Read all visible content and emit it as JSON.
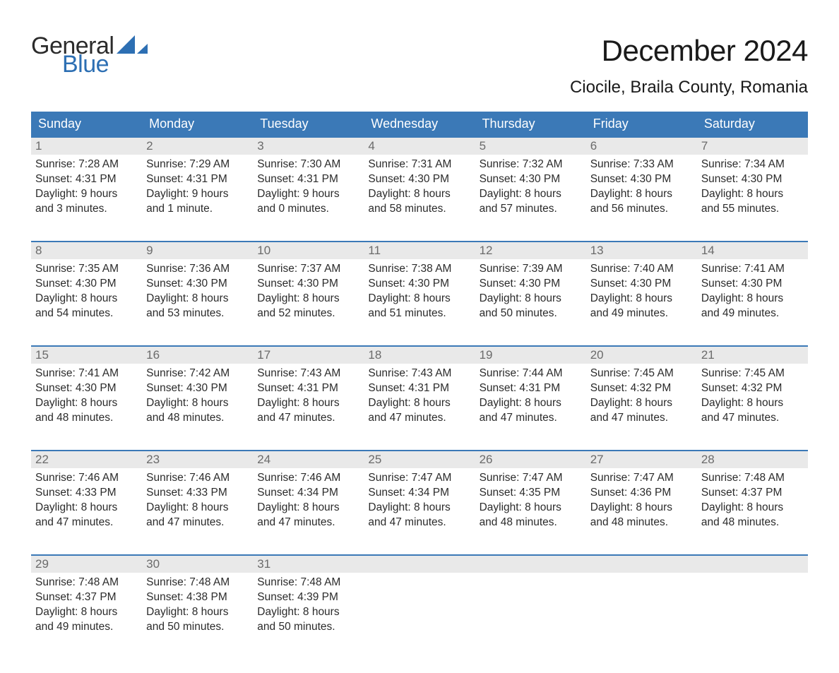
{
  "brand": {
    "general": "General",
    "blue": "Blue",
    "sail_color": "#2d6fb3"
  },
  "title": "December 2024",
  "location": "Ciocile, Braila County, Romania",
  "colors": {
    "header_bg": "#3b79b7",
    "header_text": "#ffffff",
    "daynum_bg": "#e9e9e9",
    "daynum_text": "#6b6b6b",
    "body_text": "#2b2b2b",
    "week_border": "#3b79b7",
    "page_bg": "#ffffff"
  },
  "dow": [
    "Sunday",
    "Monday",
    "Tuesday",
    "Wednesday",
    "Thursday",
    "Friday",
    "Saturday"
  ],
  "weeks": [
    [
      {
        "n": "1",
        "sr": "7:28 AM",
        "ss": "4:31 PM",
        "dl": "9 hours and 3 minutes."
      },
      {
        "n": "2",
        "sr": "7:29 AM",
        "ss": "4:31 PM",
        "dl": "9 hours and 1 minute."
      },
      {
        "n": "3",
        "sr": "7:30 AM",
        "ss": "4:31 PM",
        "dl": "9 hours and 0 minutes."
      },
      {
        "n": "4",
        "sr": "7:31 AM",
        "ss": "4:30 PM",
        "dl": "8 hours and 58 minutes."
      },
      {
        "n": "5",
        "sr": "7:32 AM",
        "ss": "4:30 PM",
        "dl": "8 hours and 57 minutes."
      },
      {
        "n": "6",
        "sr": "7:33 AM",
        "ss": "4:30 PM",
        "dl": "8 hours and 56 minutes."
      },
      {
        "n": "7",
        "sr": "7:34 AM",
        "ss": "4:30 PM",
        "dl": "8 hours and 55 minutes."
      }
    ],
    [
      {
        "n": "8",
        "sr": "7:35 AM",
        "ss": "4:30 PM",
        "dl": "8 hours and 54 minutes."
      },
      {
        "n": "9",
        "sr": "7:36 AM",
        "ss": "4:30 PM",
        "dl": "8 hours and 53 minutes."
      },
      {
        "n": "10",
        "sr": "7:37 AM",
        "ss": "4:30 PM",
        "dl": "8 hours and 52 minutes."
      },
      {
        "n": "11",
        "sr": "7:38 AM",
        "ss": "4:30 PM",
        "dl": "8 hours and 51 minutes."
      },
      {
        "n": "12",
        "sr": "7:39 AM",
        "ss": "4:30 PM",
        "dl": "8 hours and 50 minutes."
      },
      {
        "n": "13",
        "sr": "7:40 AM",
        "ss": "4:30 PM",
        "dl": "8 hours and 49 minutes."
      },
      {
        "n": "14",
        "sr": "7:41 AM",
        "ss": "4:30 PM",
        "dl": "8 hours and 49 minutes."
      }
    ],
    [
      {
        "n": "15",
        "sr": "7:41 AM",
        "ss": "4:30 PM",
        "dl": "8 hours and 48 minutes."
      },
      {
        "n": "16",
        "sr": "7:42 AM",
        "ss": "4:30 PM",
        "dl": "8 hours and 48 minutes."
      },
      {
        "n": "17",
        "sr": "7:43 AM",
        "ss": "4:31 PM",
        "dl": "8 hours and 47 minutes."
      },
      {
        "n": "18",
        "sr": "7:43 AM",
        "ss": "4:31 PM",
        "dl": "8 hours and 47 minutes."
      },
      {
        "n": "19",
        "sr": "7:44 AM",
        "ss": "4:31 PM",
        "dl": "8 hours and 47 minutes."
      },
      {
        "n": "20",
        "sr": "7:45 AM",
        "ss": "4:32 PM",
        "dl": "8 hours and 47 minutes."
      },
      {
        "n": "21",
        "sr": "7:45 AM",
        "ss": "4:32 PM",
        "dl": "8 hours and 47 minutes."
      }
    ],
    [
      {
        "n": "22",
        "sr": "7:46 AM",
        "ss": "4:33 PM",
        "dl": "8 hours and 47 minutes."
      },
      {
        "n": "23",
        "sr": "7:46 AM",
        "ss": "4:33 PM",
        "dl": "8 hours and 47 minutes."
      },
      {
        "n": "24",
        "sr": "7:46 AM",
        "ss": "4:34 PM",
        "dl": "8 hours and 47 minutes."
      },
      {
        "n": "25",
        "sr": "7:47 AM",
        "ss": "4:34 PM",
        "dl": "8 hours and 47 minutes."
      },
      {
        "n": "26",
        "sr": "7:47 AM",
        "ss": "4:35 PM",
        "dl": "8 hours and 48 minutes."
      },
      {
        "n": "27",
        "sr": "7:47 AM",
        "ss": "4:36 PM",
        "dl": "8 hours and 48 minutes."
      },
      {
        "n": "28",
        "sr": "7:48 AM",
        "ss": "4:37 PM",
        "dl": "8 hours and 48 minutes."
      }
    ],
    [
      {
        "n": "29",
        "sr": "7:48 AM",
        "ss": "4:37 PM",
        "dl": "8 hours and 49 minutes."
      },
      {
        "n": "30",
        "sr": "7:48 AM",
        "ss": "4:38 PM",
        "dl": "8 hours and 50 minutes."
      },
      {
        "n": "31",
        "sr": "7:48 AM",
        "ss": "4:39 PM",
        "dl": "8 hours and 50 minutes."
      },
      null,
      null,
      null,
      null
    ]
  ],
  "labels": {
    "sunrise": "Sunrise: ",
    "sunset": "Sunset: ",
    "daylight": "Daylight: "
  }
}
